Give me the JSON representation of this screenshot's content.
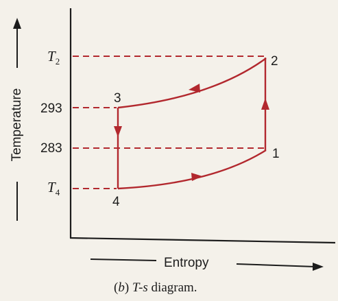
{
  "diagram": {
    "caption_prefix": "(",
    "caption_letter": "b",
    "caption_mid": ") ",
    "caption_name": "T-s",
    "caption_suffix": " diagram.",
    "y_axis_title": "Temperature",
    "x_axis_title": "Entropy",
    "y_ticks": {
      "t2": {
        "symbol": "T",
        "subscript": "2"
      },
      "t293": "293",
      "t283": "283",
      "t4": {
        "symbol": "T",
        "subscript": "4"
      }
    },
    "points": {
      "p1": "1",
      "p2": "2",
      "p3": "3",
      "p4": "4"
    },
    "process_color": "#b2282e",
    "line_color": "#1c1c1c"
  }
}
